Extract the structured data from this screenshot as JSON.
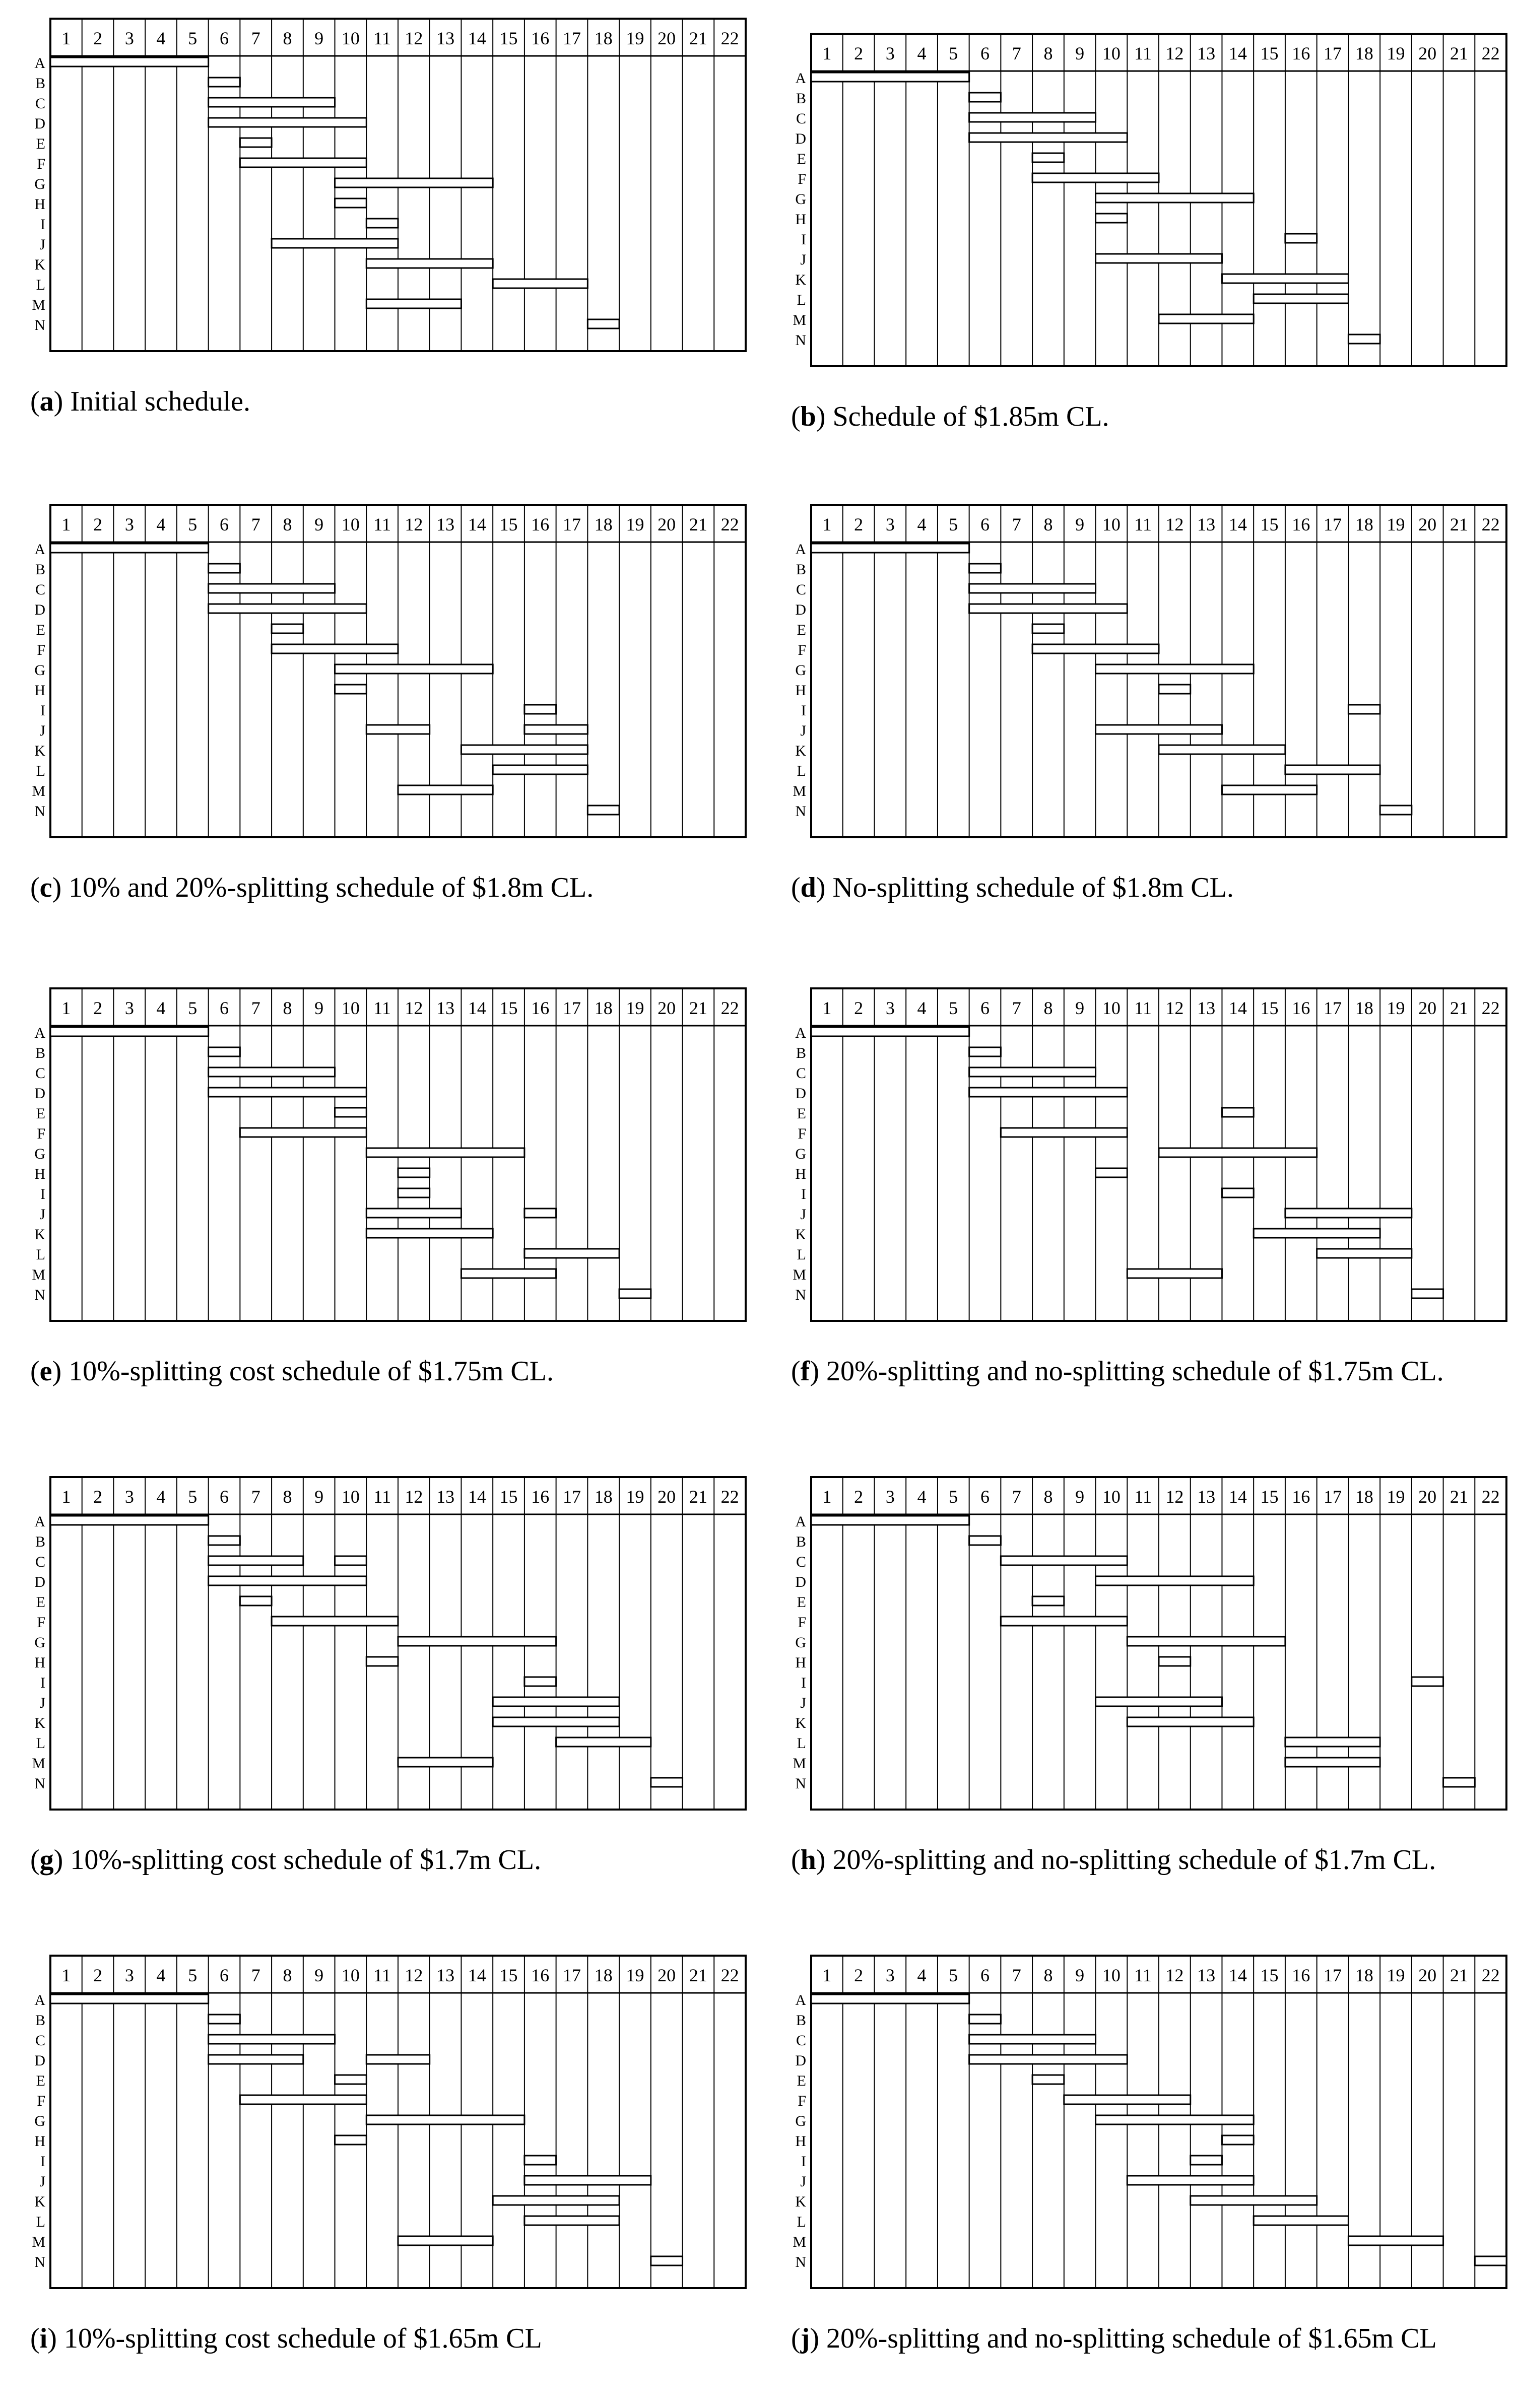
{
  "columns": [
    "1",
    "2",
    "3",
    "4",
    "5",
    "6",
    "7",
    "8",
    "9",
    "10",
    "11",
    "12",
    "13",
    "14",
    "15",
    "16",
    "17",
    "18",
    "19",
    "20",
    "21",
    "22"
  ],
  "rows": [
    "A",
    "B",
    "C",
    "D",
    "E",
    "F",
    "G",
    "H",
    "I",
    "J",
    "K",
    "L",
    "M",
    "N"
  ],
  "chart_data": [
    {
      "type": "gantt",
      "letter": "a",
      "caption": "Initial schedule.",
      "bars": {
        "A": [
          [
            1,
            5
          ]
        ],
        "B": [
          [
            6,
            6
          ]
        ],
        "C": [
          [
            6,
            9
          ]
        ],
        "D": [
          [
            6,
            10
          ]
        ],
        "E": [
          [
            7,
            7
          ]
        ],
        "F": [
          [
            7,
            10
          ]
        ],
        "G": [
          [
            10,
            14
          ]
        ],
        "H": [
          [
            10,
            10
          ]
        ],
        "I": [
          [
            11,
            11
          ]
        ],
        "J": [
          [
            8,
            11
          ]
        ],
        "K": [
          [
            11,
            14
          ]
        ],
        "L": [
          [
            15,
            17
          ]
        ],
        "M": [
          [
            11,
            13
          ]
        ],
        "N": [
          [
            18,
            18
          ]
        ]
      }
    },
    {
      "type": "gantt",
      "letter": "b",
      "caption": "Schedule of $1.85m CL.",
      "bars": {
        "A": [
          [
            1,
            5
          ]
        ],
        "B": [
          [
            6,
            6
          ]
        ],
        "C": [
          [
            6,
            9
          ]
        ],
        "D": [
          [
            6,
            10
          ]
        ],
        "E": [
          [
            8,
            8
          ]
        ],
        "F": [
          [
            8,
            11
          ]
        ],
        "G": [
          [
            10,
            14
          ]
        ],
        "H": [
          [
            10,
            10
          ]
        ],
        "I": [
          [
            16,
            16
          ]
        ],
        "J": [
          [
            10,
            13
          ]
        ],
        "K": [
          [
            14,
            17
          ]
        ],
        "L": [
          [
            15,
            17
          ]
        ],
        "M": [
          [
            12,
            14
          ]
        ],
        "N": [
          [
            18,
            18
          ]
        ]
      }
    },
    {
      "type": "gantt",
      "letter": "c",
      "caption": "10% and 20%-splitting schedule of $1.8m CL.",
      "bars": {
        "A": [
          [
            1,
            5
          ]
        ],
        "B": [
          [
            6,
            6
          ]
        ],
        "C": [
          [
            6,
            9
          ]
        ],
        "D": [
          [
            6,
            10
          ]
        ],
        "E": [
          [
            8,
            8
          ]
        ],
        "F": [
          [
            8,
            11
          ]
        ],
        "G": [
          [
            10,
            14
          ]
        ],
        "H": [
          [
            10,
            10
          ]
        ],
        "I": [
          [
            16,
            16
          ]
        ],
        "J": [
          [
            11,
            12
          ],
          [
            16,
            17
          ]
        ],
        "K": [
          [
            14,
            17
          ]
        ],
        "L": [
          [
            15,
            17
          ]
        ],
        "M": [
          [
            12,
            14
          ]
        ],
        "N": [
          [
            18,
            18
          ]
        ]
      }
    },
    {
      "type": "gantt",
      "letter": "d",
      "caption": "No-splitting schedule of $1.8m CL.",
      "bars": {
        "A": [
          [
            1,
            5
          ]
        ],
        "B": [
          [
            6,
            6
          ]
        ],
        "C": [
          [
            6,
            9
          ]
        ],
        "D": [
          [
            6,
            10
          ]
        ],
        "E": [
          [
            8,
            8
          ]
        ],
        "F": [
          [
            8,
            11
          ]
        ],
        "G": [
          [
            10,
            14
          ]
        ],
        "H": [
          [
            12,
            12
          ]
        ],
        "I": [
          [
            18,
            18
          ]
        ],
        "J": [
          [
            10,
            13
          ]
        ],
        "K": [
          [
            12,
            15
          ]
        ],
        "L": [
          [
            16,
            18
          ]
        ],
        "M": [
          [
            14,
            16
          ]
        ],
        "N": [
          [
            19,
            19
          ]
        ]
      }
    },
    {
      "type": "gantt",
      "letter": "e",
      "caption": "10%-splitting cost schedule of $1.75m CL.",
      "bars": {
        "A": [
          [
            1,
            5
          ]
        ],
        "B": [
          [
            6,
            6
          ]
        ],
        "C": [
          [
            6,
            9
          ]
        ],
        "D": [
          [
            6,
            10
          ]
        ],
        "E": [
          [
            10,
            10
          ]
        ],
        "F": [
          [
            7,
            10
          ]
        ],
        "G": [
          [
            11,
            15
          ]
        ],
        "H": [
          [
            12,
            12
          ]
        ],
        "I": [
          [
            12,
            12
          ]
        ],
        "J": [
          [
            11,
            13
          ],
          [
            16,
            16
          ]
        ],
        "K": [
          [
            11,
            14
          ]
        ],
        "L": [
          [
            16,
            18
          ]
        ],
        "M": [
          [
            14,
            16
          ]
        ],
        "N": [
          [
            19,
            19
          ]
        ]
      }
    },
    {
      "type": "gantt",
      "letter": "f",
      "caption": "20%-splitting and no-splitting schedule of $1.75m CL.",
      "bars": {
        "A": [
          [
            1,
            5
          ]
        ],
        "B": [
          [
            6,
            6
          ]
        ],
        "C": [
          [
            6,
            9
          ]
        ],
        "D": [
          [
            6,
            10
          ]
        ],
        "E": [
          [
            14,
            14
          ]
        ],
        "F": [
          [
            7,
            10
          ]
        ],
        "G": [
          [
            12,
            16
          ]
        ],
        "H": [
          [
            10,
            10
          ]
        ],
        "I": [
          [
            14,
            14
          ]
        ],
        "J": [
          [
            16,
            19
          ]
        ],
        "K": [
          [
            15,
            18
          ]
        ],
        "L": [
          [
            17,
            19
          ]
        ],
        "M": [
          [
            11,
            13
          ]
        ],
        "N": [
          [
            20,
            20
          ]
        ]
      }
    },
    {
      "type": "gantt",
      "letter": "g",
      "caption": "10%-splitting cost schedule of $1.7m CL.",
      "bars": {
        "A": [
          [
            1,
            5
          ]
        ],
        "B": [
          [
            6,
            6
          ]
        ],
        "C": [
          [
            6,
            8
          ],
          [
            10,
            10
          ]
        ],
        "D": [
          [
            6,
            10
          ]
        ],
        "E": [
          [
            7,
            7
          ]
        ],
        "F": [
          [
            8,
            11
          ]
        ],
        "G": [
          [
            12,
            16
          ]
        ],
        "H": [
          [
            11,
            11
          ]
        ],
        "I": [
          [
            16,
            16
          ]
        ],
        "J": [
          [
            15,
            18
          ]
        ],
        "K": [
          [
            15,
            18
          ]
        ],
        "L": [
          [
            17,
            19
          ]
        ],
        "M": [
          [
            12,
            14
          ]
        ],
        "N": [
          [
            20,
            20
          ]
        ]
      }
    },
    {
      "type": "gantt",
      "letter": "h",
      "caption": "20%-splitting and no-splitting schedule of $1.7m CL.",
      "bars": {
        "A": [
          [
            1,
            5
          ]
        ],
        "B": [
          [
            6,
            6
          ]
        ],
        "C": [
          [
            7,
            10
          ]
        ],
        "D": [
          [
            10,
            14
          ]
        ],
        "E": [
          [
            8,
            8
          ]
        ],
        "F": [
          [
            7,
            10
          ]
        ],
        "G": [
          [
            11,
            15
          ]
        ],
        "H": [
          [
            12,
            12
          ]
        ],
        "I": [
          [
            20,
            20
          ]
        ],
        "J": [
          [
            10,
            13
          ]
        ],
        "K": [
          [
            11,
            14
          ]
        ],
        "L": [
          [
            16,
            18
          ]
        ],
        "M": [
          [
            16,
            18
          ]
        ],
        "N": [
          [
            21,
            21
          ]
        ]
      }
    },
    {
      "type": "gantt",
      "letter": "i",
      "caption": "10%-splitting cost schedule of $1.65m CL",
      "bars": {
        "A": [
          [
            1,
            5
          ]
        ],
        "B": [
          [
            6,
            6
          ]
        ],
        "C": [
          [
            6,
            9
          ]
        ],
        "D": [
          [
            6,
            8
          ],
          [
            11,
            12
          ]
        ],
        "E": [
          [
            10,
            10
          ]
        ],
        "F": [
          [
            7,
            10
          ]
        ],
        "G": [
          [
            11,
            15
          ]
        ],
        "H": [
          [
            10,
            10
          ]
        ],
        "I": [
          [
            16,
            16
          ]
        ],
        "J": [
          [
            16,
            19
          ]
        ],
        "K": [
          [
            15,
            18
          ]
        ],
        "L": [
          [
            16,
            18
          ]
        ],
        "M": [
          [
            12,
            14
          ]
        ],
        "N": [
          [
            20,
            20
          ]
        ]
      }
    },
    {
      "type": "gantt",
      "letter": "j",
      "caption": "20%-splitting and no-splitting schedule of $1.65m CL",
      "bars": {
        "A": [
          [
            1,
            5
          ]
        ],
        "B": [
          [
            6,
            6
          ]
        ],
        "C": [
          [
            6,
            9
          ]
        ],
        "D": [
          [
            6,
            10
          ]
        ],
        "E": [
          [
            8,
            8
          ]
        ],
        "F": [
          [
            9,
            12
          ]
        ],
        "G": [
          [
            10,
            14
          ]
        ],
        "H": [
          [
            14,
            14
          ]
        ],
        "I": [
          [
            13,
            13
          ]
        ],
        "J": [
          [
            11,
            14
          ]
        ],
        "K": [
          [
            13,
            16
          ]
        ],
        "L": [
          [
            15,
            17
          ]
        ],
        "M": [
          [
            18,
            20
          ]
        ],
        "N": [
          [
            22,
            22
          ]
        ]
      }
    }
  ]
}
